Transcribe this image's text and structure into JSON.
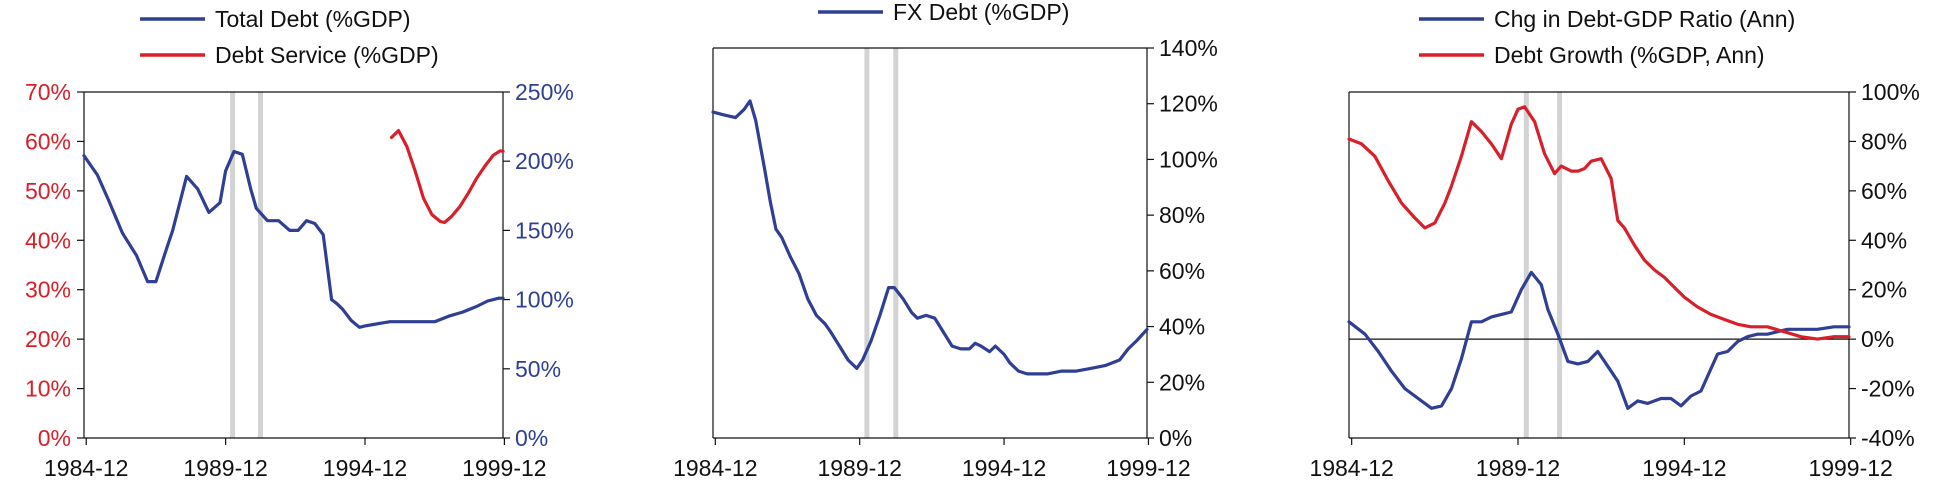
{
  "colors": {
    "blue": "#2f3f94",
    "red": "#d7202a",
    "axis": "#111111",
    "shade": "#d3d3d3"
  },
  "chart_data": [
    {
      "type": "line",
      "x_ticks": [
        "1984-12",
        "1989-12",
        "1994-12",
        "1999-12"
      ],
      "recession_shading": [
        "1990-03",
        "1991-03"
      ],
      "legend_placement": "top",
      "grid": false,
      "left_axis": {
        "ticks": [
          "0%",
          "10%",
          "20%",
          "30%",
          "40%",
          "50%",
          "60%",
          "70%"
        ],
        "ylim": [
          0,
          70
        ],
        "color": "#d7202a"
      },
      "right_axis": {
        "ticks": [
          "0%",
          "50%",
          "100%",
          "150%",
          "200%",
          "250%"
        ],
        "ylim": [
          0,
          250
        ],
        "color": "#2f3f94"
      },
      "series": [
        {
          "name": "Total Debt (%GDP)",
          "axis": "right",
          "color": "#2f3f94",
          "x": [
            1984.92,
            1985.4,
            1985.8,
            1986.3,
            1986.8,
            1987.2,
            1987.5,
            1987.9,
            1988.1,
            1988.6,
            1989.0,
            1989.4,
            1989.8,
            1990.0,
            1990.3,
            1990.6,
            1990.9,
            1991.1,
            1991.5,
            1991.9,
            1992.3,
            1992.6,
            1992.9,
            1993.2,
            1993.5,
            1993.8,
            1994.0,
            1994.2,
            1994.5,
            1994.8,
            1995.0,
            1995.3,
            1995.6,
            1995.9,
            1996.3,
            1996.8,
            1997.5,
            1998.0,
            1998.5,
            1999.0,
            1999.4,
            1999.8,
            1999.95
          ],
          "y": [
            204,
            190,
            172,
            148,
            132,
            113,
            113,
            138,
            150,
            189,
            180,
            163,
            170,
            193,
            207,
            205,
            180,
            166,
            157,
            157,
            150,
            150,
            157,
            155,
            147,
            100,
            97,
            93,
            85,
            80,
            81,
            82,
            83,
            84,
            84,
            84,
            84,
            88,
            91,
            95,
            99,
            101,
            101
          ]
        },
        {
          "name": "Debt Service (%GDP)",
          "axis": "left",
          "color": "#d7202a",
          "x": [
            1995.95,
            1996.2,
            1996.5,
            1996.8,
            1997.1,
            1997.4,
            1997.7,
            1997.85,
            1998.1,
            1998.4,
            1998.7,
            1999.0,
            1999.3,
            1999.6,
            1999.85,
            1999.95
          ],
          "y": [
            60.8,
            62.2,
            59.0,
            54.0,
            48.5,
            45.2,
            43.8,
            43.6,
            44.8,
            46.8,
            49.5,
            52.5,
            55.0,
            57.2,
            58.1,
            58.0
          ]
        }
      ]
    },
    {
      "type": "line",
      "x_ticks": [
        "1984-12",
        "1989-12",
        "1994-12",
        "1999-12"
      ],
      "recession_shading": [
        "1990-03",
        "1991-03"
      ],
      "legend_placement": "top",
      "grid": false,
      "right_axis": {
        "ticks": [
          "0%",
          "20%",
          "40%",
          "60%",
          "80%",
          "100%",
          "120%",
          "140%"
        ],
        "ylim": [
          0,
          140
        ],
        "color": "#111111"
      },
      "series": [
        {
          "name": "FX Debt (%GDP)",
          "axis": "right",
          "color": "#2f3f94",
          "x": [
            1984.92,
            1985.3,
            1985.7,
            1986.0,
            1986.2,
            1986.4,
            1986.7,
            1986.9,
            1987.1,
            1987.3,
            1987.6,
            1987.9,
            1988.2,
            1988.5,
            1988.8,
            1989.0,
            1989.3,
            1989.6,
            1989.9,
            1990.1,
            1990.4,
            1990.7,
            1991.0,
            1991.2,
            1991.5,
            1991.8,
            1992.0,
            1992.3,
            1992.6,
            1992.9,
            1993.2,
            1993.5,
            1993.8,
            1994.0,
            1994.2,
            1994.5,
            1994.7,
            1995.0,
            1995.2,
            1995.5,
            1995.8,
            1996.0,
            1996.5,
            1997.0,
            1997.5,
            1998.0,
            1998.5,
            1999.0,
            1999.3,
            1999.6,
            1999.95
          ],
          "y": [
            117,
            116,
            115,
            118,
            121,
            114,
            97,
            85,
            75,
            72,
            65,
            59,
            50,
            44,
            41,
            38,
            33,
            28,
            25,
            28,
            35,
            44,
            54,
            54,
            50,
            45,
            43,
            44,
            43,
            38,
            33,
            32,
            32,
            34,
            33,
            31,
            33,
            30,
            27,
            24,
            23,
            23,
            23,
            24,
            24,
            25,
            26,
            28,
            32,
            35,
            39
          ]
        }
      ]
    },
    {
      "type": "line",
      "x_ticks": [
        "1984-12",
        "1989-12",
        "1994-12",
        "1999-12"
      ],
      "recession_shading": [
        "1990-03",
        "1991-03"
      ],
      "legend_placement": "top",
      "grid": false,
      "right_axis": {
        "ticks": [
          "-40%",
          "-20%",
          "0%",
          "20%",
          "40%",
          "60%",
          "80%",
          "100%"
        ],
        "ylim": [
          -40,
          100
        ],
        "color": "#111111"
      },
      "series": [
        {
          "name": "Chg in Debt-GDP Ratio (Ann)",
          "axis": "right",
          "color": "#2f3f94",
          "x": [
            1984.92,
            1985.4,
            1985.8,
            1986.2,
            1986.6,
            1987.0,
            1987.4,
            1987.7,
            1988.0,
            1988.3,
            1988.6,
            1988.9,
            1989.2,
            1989.5,
            1989.8,
            1990.1,
            1990.4,
            1990.7,
            1990.9,
            1991.2,
            1991.5,
            1991.8,
            1992.1,
            1992.4,
            1992.7,
            1993.0,
            1993.3,
            1993.6,
            1993.9,
            1994.1,
            1994.3,
            1994.6,
            1994.9,
            1995.2,
            1995.5,
            1995.8,
            1996.0,
            1996.3,
            1996.6,
            1996.9,
            1997.2,
            1997.5,
            1997.8,
            1998.1,
            1998.5,
            1999.0,
            1999.5,
            1999.95
          ],
          "y": [
            7,
            2,
            -5,
            -13,
            -20,
            -24,
            -28,
            -27,
            -20,
            -8,
            7,
            7,
            9,
            10,
            11,
            20,
            27,
            22,
            12,
            2,
            -9,
            -10,
            -9,
            -5,
            -11,
            -17,
            -28,
            -25,
            -26,
            -25,
            -24,
            -24,
            -27,
            -23,
            -21,
            -12,
            -6,
            -5,
            -1,
            1,
            2,
            2,
            3,
            4,
            4,
            4,
            5,
            5
          ]
        },
        {
          "name": "Debt Growth (%GDP, Ann)",
          "axis": "right",
          "color": "#d7202a",
          "x": [
            1984.92,
            1985.3,
            1985.7,
            1986.1,
            1986.5,
            1986.9,
            1987.2,
            1987.5,
            1987.8,
            1988.0,
            1988.3,
            1988.6,
            1988.9,
            1989.2,
            1989.5,
            1989.8,
            1990.0,
            1990.2,
            1990.5,
            1990.8,
            1991.1,
            1991.3,
            1991.6,
            1991.8,
            1992.0,
            1992.2,
            1992.5,
            1992.8,
            1993.0,
            1993.2,
            1993.5,
            1993.8,
            1994.1,
            1994.4,
            1994.7,
            1995.0,
            1995.4,
            1995.8,
            1996.2,
            1996.6,
            1997.0,
            1997.5,
            1998.0,
            1998.5,
            1999.0,
            1999.5,
            1999.95
          ],
          "y": [
            81,
            79,
            74,
            64,
            55,
            49,
            45,
            47,
            55,
            62,
            74,
            88,
            84,
            79,
            73,
            87,
            93,
            94,
            88,
            75,
            67,
            70,
            68,
            68,
            69,
            72,
            73,
            65,
            48,
            45,
            38,
            32,
            28,
            25,
            21,
            17,
            13,
            10,
            8,
            6,
            5,
            5,
            3,
            1,
            0,
            1,
            1
          ]
        }
      ]
    }
  ]
}
